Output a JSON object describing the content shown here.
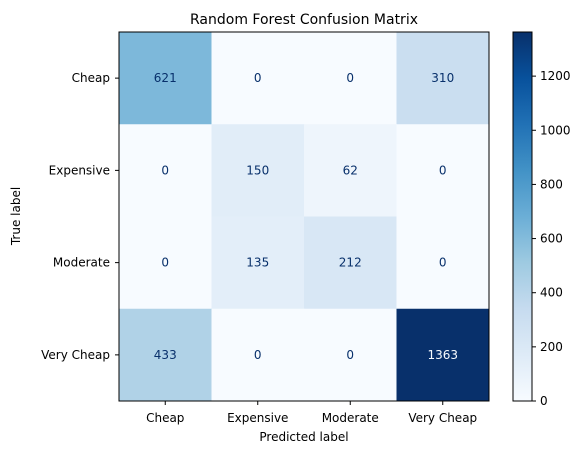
{
  "chart_data": {
    "type": "heatmap",
    "title": "Random Forest Confusion Matrix",
    "xlabel": "Predicted label",
    "ylabel": "True label",
    "x_categories": [
      "Cheap",
      "Expensive",
      "Moderate",
      "Very Cheap"
    ],
    "y_categories": [
      "Cheap",
      "Expensive",
      "Moderate",
      "Very Cheap"
    ],
    "values": [
      [
        621,
        0,
        0,
        310
      ],
      [
        0,
        150,
        62,
        0
      ],
      [
        0,
        135,
        212,
        0
      ],
      [
        433,
        0,
        0,
        1363
      ]
    ],
    "colormap": "Blues",
    "colorbar": {
      "min": 0,
      "max": 1363,
      "ticks": [
        0,
        200,
        400,
        600,
        800,
        1000,
        1200
      ]
    }
  }
}
